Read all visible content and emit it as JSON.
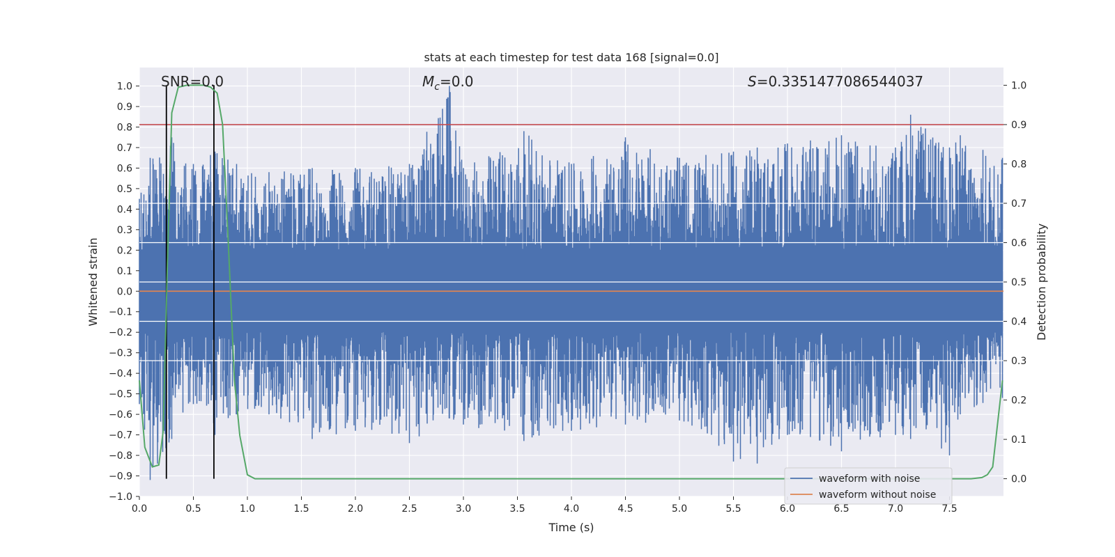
{
  "chart_data": {
    "type": "line",
    "title": "stats at each timestep for test data 168 [signal=0.0]",
    "xlabel": "Time (s)",
    "ylabel": "Whitened strain",
    "ylabel_right": "Detection probability",
    "xlim": [
      0.0,
      8.0
    ],
    "ylim": [
      -1.0,
      1.09
    ],
    "ylim_right": [
      -0.045,
      1.045
    ],
    "xticks": [
      "0.0",
      "0.5",
      "1.0",
      "1.5",
      "2.0",
      "2.5",
      "3.0",
      "3.5",
      "4.0",
      "4.5",
      "5.0",
      "5.5",
      "6.0",
      "6.5",
      "7.0",
      "7.5"
    ],
    "yticks": [
      "1.0",
      "0.9",
      "0.8",
      "0.7",
      "0.6",
      "0.5",
      "0.4",
      "0.3",
      "0.2",
      "0.1",
      "0.0",
      "−0.1",
      "−0.2",
      "−0.3",
      "−0.4",
      "−0.5",
      "−0.6",
      "−0.7",
      "−0.8",
      "−0.9",
      "−1.0"
    ],
    "yticks_right": [
      "1.0",
      "0.9",
      "0.8",
      "0.7",
      "0.6",
      "0.5",
      "0.4",
      "0.3",
      "0.2",
      "0.1",
      "0.0"
    ],
    "annotations": {
      "snr": "SNR=0.0",
      "mc_symbol": "M",
      "mc_sub": "c",
      "mc_value": "=0.0",
      "s_symbol": "S",
      "s_value": "=0.3351477086544037"
    },
    "threshold_right": 0.9,
    "vlines_x": [
      0.25,
      0.69
    ],
    "series": [
      {
        "name": "waveform with noise",
        "color": "#4c72b0",
        "envelope": {
          "x": [
            0.0,
            0.1,
            0.3,
            0.5,
            0.7,
            0.9,
            1.2,
            1.6,
            2.0,
            2.5,
            2.87,
            3.0,
            3.56,
            4.0,
            4.5,
            5.0,
            5.5,
            5.72,
            6.0,
            6.5,
            7.0,
            7.14,
            7.5,
            7.6,
            7.99
          ],
          "upper": [
            0.45,
            0.65,
            0.75,
            0.62,
            0.68,
            0.62,
            0.58,
            0.6,
            0.6,
            0.62,
            1.0,
            0.6,
            0.78,
            0.62,
            0.75,
            0.65,
            0.68,
            0.7,
            0.72,
            0.76,
            0.7,
            0.86,
            0.7,
            0.76,
            0.65
          ],
          "lower": [
            -0.55,
            -0.92,
            -0.72,
            -0.55,
            -0.7,
            -0.6,
            -0.6,
            -0.72,
            -0.68,
            -0.74,
            -0.62,
            -0.65,
            -0.73,
            -0.68,
            -0.65,
            -0.63,
            -0.83,
            -0.84,
            -0.7,
            -0.78,
            -0.7,
            -0.72,
            -0.8,
            -0.6,
            -0.52
          ]
        }
      },
      {
        "name": "waveform without noise",
        "color": "#dd8452",
        "x": [
          0.0,
          8.0
        ],
        "y": [
          0.0,
          0.0
        ]
      },
      {
        "name": "detection probability",
        "color": "#55a868",
        "x": [
          0.0,
          0.05,
          0.12,
          0.18,
          0.22,
          0.26,
          0.3,
          0.36,
          0.44,
          0.52,
          0.6,
          0.66,
          0.72,
          0.77,
          0.82,
          0.88,
          0.93,
          1.0,
          1.07,
          1.5,
          2.0,
          3.0,
          4.0,
          5.0,
          6.0,
          7.0,
          7.5,
          7.7,
          7.8,
          7.85,
          7.9,
          7.99
        ],
        "y": [
          0.25,
          0.08,
          0.03,
          0.035,
          0.12,
          0.55,
          0.93,
          0.995,
          1.0,
          1.0,
          1.0,
          0.995,
          0.98,
          0.9,
          0.62,
          0.25,
          0.11,
          0.01,
          0.0,
          0.0,
          0.0,
          0.0,
          0.0,
          0.0,
          0.0,
          0.0,
          0.0,
          0.0,
          0.003,
          0.01,
          0.03,
          0.25
        ]
      }
    ],
    "legend": {
      "placement": "lower-right",
      "entries": [
        "waveform with noise",
        "waveform without noise"
      ]
    },
    "colors": {
      "background": "#eaeaf2",
      "grid": "#ffffff",
      "threshold": "#c44e52",
      "vline": "#000000"
    },
    "grid": true
  }
}
